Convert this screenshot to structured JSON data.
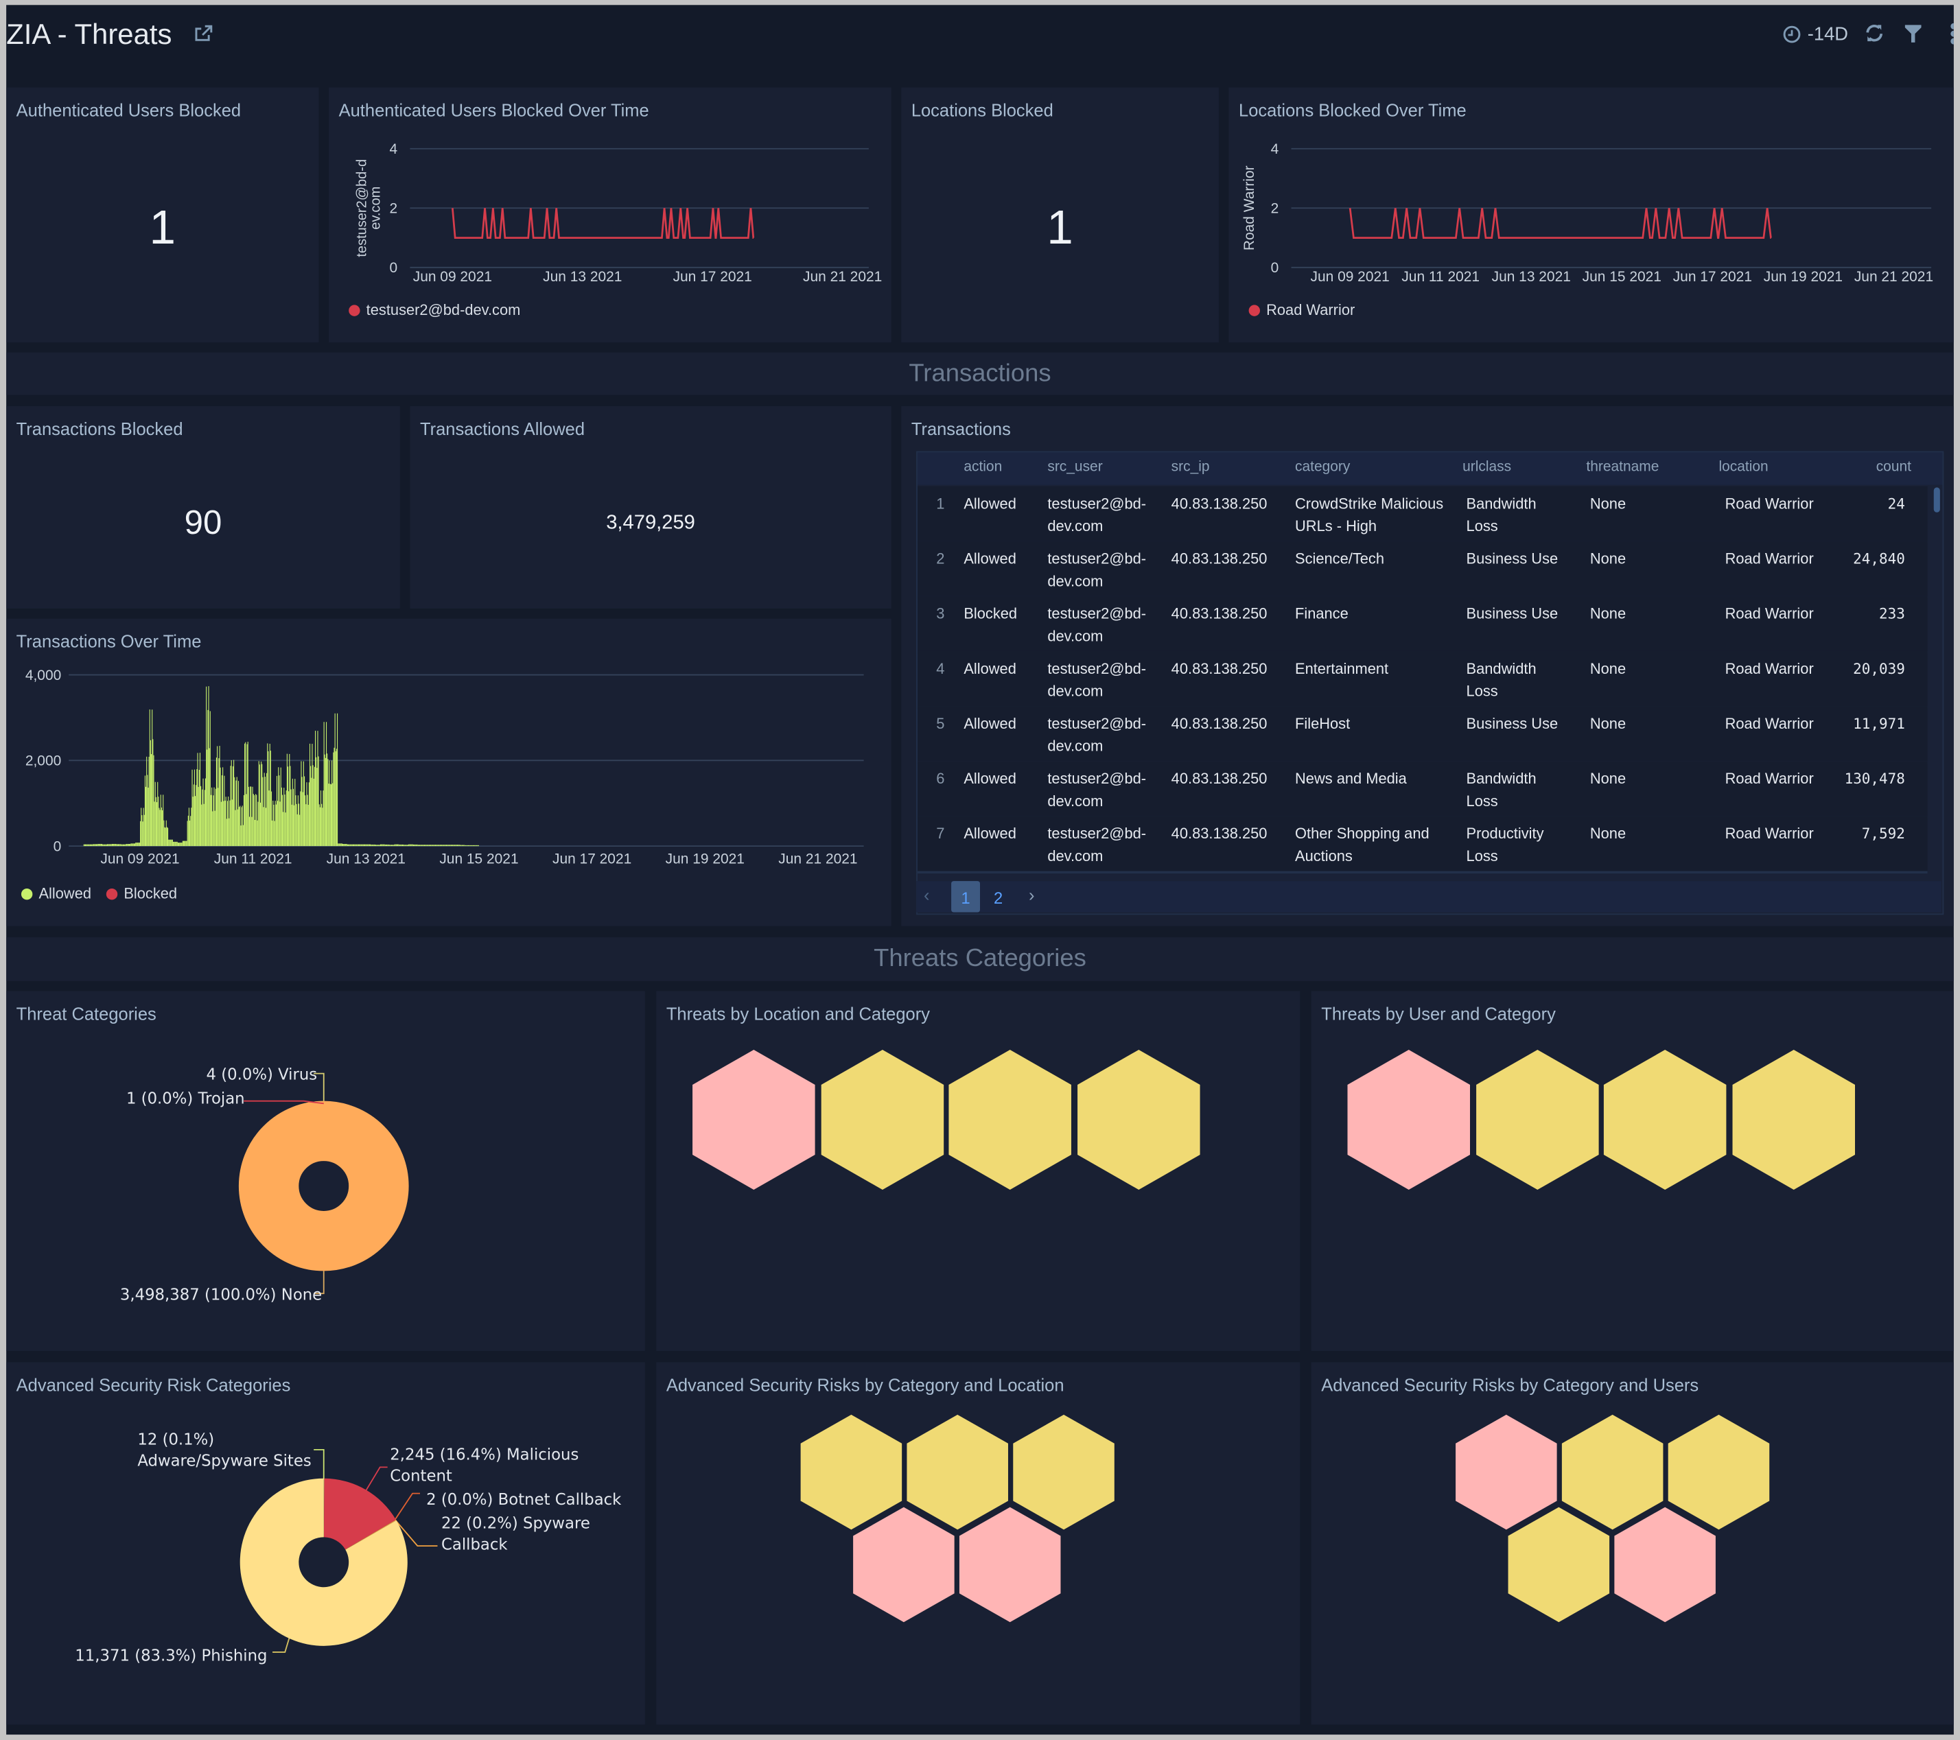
{
  "header": {
    "title": "ZIA - Threats",
    "time_range": "-14D",
    "icons": [
      "share-icon",
      "clock-icon",
      "refresh-icon",
      "filter-icon",
      "more-icon"
    ]
  },
  "colors": {
    "line": "#d63c4b",
    "allowed": "#c7f06c",
    "blocked": "#d63c4b",
    "hex_pink": "#ffb5b5",
    "hex_yellow": "#f0da74",
    "donut_none": "#ffab5a",
    "phishing": "#ffe08a",
    "malicious": "#d63c4b",
    "spyware": "#f0a040",
    "adware": "#c8e070",
    "botnet": "#e06030"
  },
  "panels": {
    "auth_users_blocked": {
      "title": "Authenticated Users Blocked",
      "value": "1"
    },
    "auth_users_over_time": {
      "title": "Authenticated Users Blocked Over Time"
    },
    "locations_blocked": {
      "title": "Locations Blocked",
      "value": "1"
    },
    "locations_over_time": {
      "title": "Locations Blocked Over Time"
    },
    "tx_blocked": {
      "title": "Transactions Blocked",
      "value": "90"
    },
    "tx_allowed": {
      "title": "Transactions Allowed",
      "value": "3,479,259"
    },
    "tx_over_time": {
      "title": "Transactions Over Time"
    },
    "transactions": {
      "title": "Transactions"
    },
    "threat_categories": {
      "title": "Threat Categories"
    },
    "threats_loc_cat": {
      "title": "Threats by Location and Category"
    },
    "threats_user_cat": {
      "title": "Threats by User and Category"
    },
    "adv_risk_cat": {
      "title": "Advanced Security Risk Categories"
    },
    "adv_risk_loc": {
      "title": "Advanced Security Risks by Category and Location"
    },
    "adv_risk_users": {
      "title": "Advanced Security Risks by Category and Users"
    }
  },
  "sections": {
    "transactions": "Transactions",
    "threats": "Threats Categories"
  },
  "chart_data": [
    {
      "type": "line",
      "title": "Authenticated Users Blocked Over Time",
      "ylabel": "testuser2@bd-dev.com",
      "ylim": [
        0,
        4
      ],
      "yticks": [
        "0",
        "2",
        "4"
      ],
      "xticks": [
        "Jun 09 2021",
        "Jun 13 2021",
        "Jun 17 2021",
        "Jun 21 2021"
      ],
      "grid": true,
      "legend": "bottom-left",
      "series": [
        {
          "name": "testuser2@bd-dev.com",
          "baseline": 1,
          "peak": 2,
          "start": "2021-06-09T00:00",
          "end": "2021-06-18T07:00",
          "spikes": [
            "2021-06-09T00:00",
            "2021-06-10T00:00",
            "2021-06-10T06:00",
            "2021-06-10T13:00",
            "2021-06-11T10:00",
            "2021-06-11T22:00",
            "2021-06-12T05:00",
            "2021-06-15T13:00",
            "2021-06-15T18:00",
            "2021-06-16T01:00",
            "2021-06-16T06:00",
            "2021-06-17T01:00",
            "2021-06-17T05:00",
            "2021-06-18T05:00"
          ]
        }
      ]
    },
    {
      "type": "line",
      "title": "Locations Blocked Over Time",
      "ylabel": "Road Warrior",
      "ylim": [
        0,
        4
      ],
      "yticks": [
        "0",
        "2",
        "4"
      ],
      "xticks": [
        "Jun 09 2021",
        "Jun 11 2021",
        "Jun 13 2021",
        "Jun 15 2021",
        "Jun 17 2021",
        "Jun 19 2021",
        "Jun 21 2021"
      ],
      "grid": true,
      "legend": "bottom-left",
      "series": [
        {
          "name": "Road Warrior",
          "baseline": 1,
          "peak": 2,
          "start": "2021-06-09T00:00",
          "end": "2021-06-18T07:00",
          "spikes": [
            "2021-06-09T00:00",
            "2021-06-10T00:00",
            "2021-06-10T06:00",
            "2021-06-10T13:00",
            "2021-06-11T10:00",
            "2021-06-11T22:00",
            "2021-06-12T05:00",
            "2021-06-15T13:00",
            "2021-06-15T18:00",
            "2021-06-16T01:00",
            "2021-06-16T06:00",
            "2021-06-17T01:00",
            "2021-06-17T05:00",
            "2021-06-18T05:00"
          ]
        }
      ]
    },
    {
      "type": "bar",
      "title": "Transactions Over Time",
      "ylim": [
        0,
        4000
      ],
      "yticks": [
        "0",
        "2,000",
        "4,000"
      ],
      "xticks": [
        "Jun 09 2021",
        "Jun 11 2021",
        "Jun 13 2021",
        "Jun 15 2021",
        "Jun 17 2021",
        "Jun 19 2021",
        "Jun 21 2021"
      ],
      "grid": true,
      "legend": "bottom-left",
      "x_start": "2021-06-08T00:00",
      "bin_hours": 2,
      "series": [
        {
          "name": "Allowed",
          "values": [
            40,
            40,
            45,
            50,
            40,
            45,
            50,
            45,
            40,
            50,
            60,
            80,
            900,
            2100,
            3200,
            1500,
            1200,
            600,
            150,
            100,
            80,
            120,
            900,
            1800,
            2200,
            1600,
            3800,
            1400,
            2400,
            1900,
            1200,
            2100,
            1700,
            1000,
            2600,
            1500,
            1300,
            2100,
            1800,
            2500,
            1100,
            1900,
            1400,
            2200,
            1600,
            1200,
            2000,
            1500,
            2400,
            2700,
            1300,
            2900,
            2000,
            3100,
            60,
            50,
            40,
            40,
            40,
            40,
            40,
            35,
            30,
            40,
            35,
            30,
            40,
            35,
            30,
            40,
            35,
            30,
            30,
            30,
            30,
            30,
            30,
            30,
            30,
            30,
            25,
            20,
            20,
            20
          ]
        },
        {
          "name": "Blocked",
          "values": []
        }
      ]
    },
    {
      "type": "pie",
      "title": "Threat Categories",
      "slices": [
        {
          "label": "None",
          "value": 3498387,
          "text": "3,498,387 (100.0%) None"
        },
        {
          "label": "Virus",
          "value": 4,
          "text": "4 (0.0%) Virus"
        },
        {
          "label": "Trojan",
          "value": 1,
          "text": "1 (0.0%) Trojan"
        }
      ]
    },
    {
      "type": "pie",
      "title": "Advanced Security Risk Categories",
      "slices": [
        {
          "label": "Adware/Spyware Sites",
          "value": 12,
          "text1": "12 (0.1%)",
          "text2": "Adware/Spyware Sites"
        },
        {
          "label": "Malicious Content",
          "value": 2245,
          "text1": "2,245 (16.4%) Malicious",
          "text2": "Content"
        },
        {
          "label": "Botnet Callback",
          "value": 2,
          "text1": "2 (0.0%) Botnet Callback"
        },
        {
          "label": "Spyware Callback",
          "value": 22,
          "text1": "22 (0.2%) Spyware",
          "text2": "Callback"
        },
        {
          "label": "Phishing",
          "value": 11371,
          "text1": "11,371 (83.3%) Phishing"
        }
      ]
    }
  ],
  "hexmaps": {
    "threats_loc_cat": [
      "pink",
      "yellow",
      "yellow",
      "yellow"
    ],
    "threats_user_cat": [
      "pink",
      "yellow",
      "yellow",
      "yellow"
    ],
    "adv_risk_loc": [
      "yellow",
      "yellow",
      "yellow",
      "pink",
      "pink"
    ],
    "adv_risk_users": [
      "pink",
      "yellow",
      "yellow",
      "yellow",
      "pink"
    ]
  },
  "table": {
    "columns": [
      "action",
      "src_user",
      "src_ip",
      "category",
      "urlclass",
      "threatname",
      "location",
      "count"
    ],
    "rows": [
      {
        "n": "1",
        "action": "Allowed",
        "src_user": [
          "testuser2@bd-",
          "dev.com"
        ],
        "src_ip": "40.83.138.250",
        "category": [
          "CrowdStrike Malicious",
          "URLs - High"
        ],
        "urlclass": [
          "Bandwidth",
          "Loss"
        ],
        "threatname": "None",
        "location": "Road Warrior",
        "count": "24"
      },
      {
        "n": "2",
        "action": "Allowed",
        "src_user": [
          "testuser2@bd-",
          "dev.com"
        ],
        "src_ip": "40.83.138.250",
        "category": [
          "Science/Tech",
          ""
        ],
        "urlclass": [
          "Business Use",
          ""
        ],
        "threatname": "None",
        "location": "Road Warrior",
        "count": "24,840"
      },
      {
        "n": "3",
        "action": "Blocked",
        "src_user": [
          "testuser2@bd-",
          "dev.com"
        ],
        "src_ip": "40.83.138.250",
        "category": [
          "Finance",
          ""
        ],
        "urlclass": [
          "Business Use",
          ""
        ],
        "threatname": "None",
        "location": "Road Warrior",
        "count": "233"
      },
      {
        "n": "4",
        "action": "Allowed",
        "src_user": [
          "testuser2@bd-",
          "dev.com"
        ],
        "src_ip": "40.83.138.250",
        "category": [
          "Entertainment",
          ""
        ],
        "urlclass": [
          "Bandwidth",
          "Loss"
        ],
        "threatname": "None",
        "location": "Road Warrior",
        "count": "20,039"
      },
      {
        "n": "5",
        "action": "Allowed",
        "src_user": [
          "testuser2@bd-",
          "dev.com"
        ],
        "src_ip": "40.83.138.250",
        "category": [
          "FileHost",
          ""
        ],
        "urlclass": [
          "Business Use",
          ""
        ],
        "threatname": "None",
        "location": "Road Warrior",
        "count": "11,971"
      },
      {
        "n": "6",
        "action": "Allowed",
        "src_user": [
          "testuser2@bd-",
          "dev.com"
        ],
        "src_ip": "40.83.138.250",
        "category": [
          "News and Media",
          ""
        ],
        "urlclass": [
          "Bandwidth",
          "Loss"
        ],
        "threatname": "None",
        "location": "Road Warrior",
        "count": "130,478"
      },
      {
        "n": "7",
        "action": "Allowed",
        "src_user": [
          "testuser2@bd-",
          "dev.com"
        ],
        "src_ip": "40.83.138.250",
        "category": [
          "Other Shopping and",
          "Auctions"
        ],
        "urlclass": [
          "Productivity",
          "Loss"
        ],
        "threatname": "None",
        "location": "Road Warrior",
        "count": "7,592"
      }
    ],
    "pagination": {
      "pages": [
        "1",
        "2"
      ],
      "current": "1"
    }
  }
}
